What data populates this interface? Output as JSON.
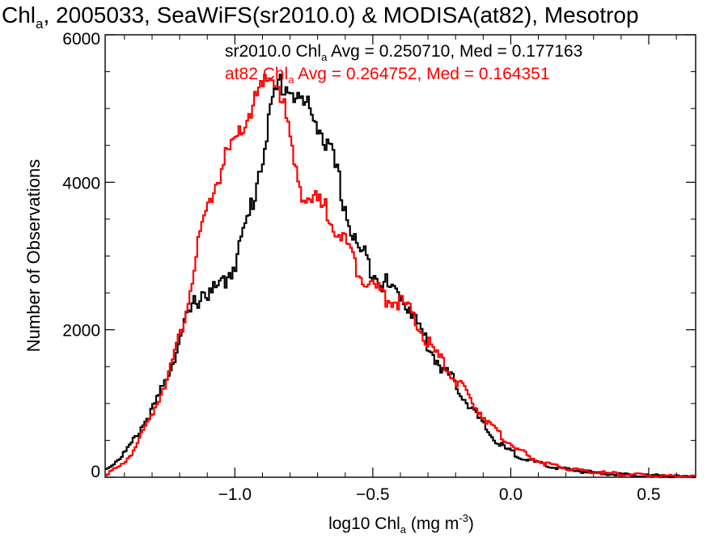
{
  "chart_data": {
    "type": "line",
    "title_parts": [
      "Chl",
      "a",
      ", 2005033, SeaWiFS(sr2010.0) & MODISA(at82), Mesotrop"
    ],
    "ylabel": "Number of Observations",
    "xlabel_parts": [
      "log10 Chl",
      "a",
      " (mg m",
      "-3",
      ")"
    ],
    "xlim": [
      -1.47,
      0.67
    ],
    "ylim": [
      0,
      6000
    ],
    "x_ticks": [
      {
        "value": -1.0,
        "label": "−1.0"
      },
      {
        "value": -0.5,
        "label": "−0.5"
      },
      {
        "value": 0.0,
        "label": "0.0"
      },
      {
        "value": 0.5,
        "label": "0.5"
      }
    ],
    "y_ticks": [
      {
        "value": 0,
        "label": "0"
      },
      {
        "value": 2000,
        "label": "2000"
      },
      {
        "value": 4000,
        "label": "4000"
      },
      {
        "value": 6000,
        "label": "6000"
      }
    ],
    "series": [
      {
        "color": "#000000",
        "annotation_parts": [
          "sr2010.0 Chl",
          "a",
          " Avg = 0.250710, Med = 0.177163"
        ],
        "points": [
          [
            -1.47,
            120
          ],
          [
            -1.42,
            280
          ],
          [
            -1.38,
            460
          ],
          [
            -1.34,
            720
          ],
          [
            -1.3,
            960
          ],
          [
            -1.26,
            1300
          ],
          [
            -1.22,
            1720
          ],
          [
            -1.18,
            2180
          ],
          [
            -1.15,
            2420
          ],
          [
            -1.12,
            2600
          ],
          [
            -1.09,
            2560
          ],
          [
            -1.06,
            2640
          ],
          [
            -1.03,
            2800
          ],
          [
            -1.0,
            3050
          ],
          [
            -0.97,
            3400
          ],
          [
            -0.94,
            3800
          ],
          [
            -0.91,
            4350
          ],
          [
            -0.88,
            4900
          ],
          [
            -0.86,
            5250
          ],
          [
            -0.84,
            5450
          ],
          [
            -0.82,
            5400
          ],
          [
            -0.8,
            5350
          ],
          [
            -0.78,
            5250
          ],
          [
            -0.76,
            5150
          ],
          [
            -0.74,
            5100
          ],
          [
            -0.72,
            5000
          ],
          [
            -0.7,
            4900
          ],
          [
            -0.68,
            4650
          ],
          [
            -0.66,
            4500
          ],
          [
            -0.64,
            4300
          ],
          [
            -0.62,
            4000
          ],
          [
            -0.6,
            3700
          ],
          [
            -0.58,
            3400
          ],
          [
            -0.56,
            3200
          ],
          [
            -0.53,
            3050
          ],
          [
            -0.5,
            2900
          ],
          [
            -0.47,
            2750
          ],
          [
            -0.44,
            2620
          ],
          [
            -0.4,
            2550
          ],
          [
            -0.37,
            2380
          ],
          [
            -0.33,
            2050
          ],
          [
            -0.29,
            1750
          ],
          [
            -0.25,
            1520
          ],
          [
            -0.21,
            1350
          ],
          [
            -0.17,
            1100
          ],
          [
            -0.13,
            880
          ],
          [
            -0.1,
            720
          ],
          [
            -0.06,
            520
          ],
          [
            -0.02,
            400
          ],
          [
            0.02,
            320
          ],
          [
            0.06,
            250
          ],
          [
            0.1,
            200
          ],
          [
            0.14,
            160
          ],
          [
            0.2,
            120
          ],
          [
            0.26,
            90
          ],
          [
            0.32,
            70
          ],
          [
            0.4,
            50
          ],
          [
            0.48,
            35
          ],
          [
            0.56,
            25
          ],
          [
            0.67,
            15
          ]
        ]
      },
      {
        "color": "#ff0000",
        "annotation_parts": [
          "at82 Chl",
          "a",
          " Avg = 0.264752, Med = 0.164351"
        ],
        "points": [
          [
            -1.47,
            60
          ],
          [
            -1.42,
            150
          ],
          [
            -1.38,
            330
          ],
          [
            -1.34,
            600
          ],
          [
            -1.3,
            920
          ],
          [
            -1.26,
            1300
          ],
          [
            -1.22,
            1720
          ],
          [
            -1.19,
            2150
          ],
          [
            -1.17,
            2600
          ],
          [
            -1.15,
            2900
          ],
          [
            -1.13,
            3300
          ],
          [
            -1.11,
            3600
          ],
          [
            -1.09,
            3900
          ],
          [
            -1.07,
            4100
          ],
          [
            -1.05,
            4300
          ],
          [
            -1.03,
            4450
          ],
          [
            -1.01,
            4550
          ],
          [
            -0.99,
            4700
          ],
          [
            -0.97,
            4850
          ],
          [
            -0.95,
            5050
          ],
          [
            -0.93,
            5200
          ],
          [
            -0.91,
            5300
          ],
          [
            -0.89,
            5420
          ],
          [
            -0.87,
            5520
          ],
          [
            -0.85,
            5450
          ],
          [
            -0.83,
            5200
          ],
          [
            -0.81,
            4800
          ],
          [
            -0.79,
            4350
          ],
          [
            -0.77,
            4050
          ],
          [
            -0.75,
            3950
          ],
          [
            -0.73,
            3850
          ],
          [
            -0.71,
            3800
          ],
          [
            -0.69,
            3750
          ],
          [
            -0.67,
            3700
          ],
          [
            -0.65,
            3600
          ],
          [
            -0.63,
            3450
          ],
          [
            -0.61,
            3300
          ],
          [
            -0.59,
            3150
          ],
          [
            -0.57,
            3000
          ],
          [
            -0.55,
            2900
          ],
          [
            -0.53,
            2800
          ],
          [
            -0.5,
            2650
          ],
          [
            -0.47,
            2550
          ],
          [
            -0.44,
            2500
          ],
          [
            -0.4,
            2450
          ],
          [
            -0.37,
            2300
          ],
          [
            -0.33,
            2050
          ],
          [
            -0.29,
            1800
          ],
          [
            -0.25,
            1600
          ],
          [
            -0.21,
            1400
          ],
          [
            -0.17,
            1200
          ],
          [
            -0.13,
            1000
          ],
          [
            -0.09,
            800
          ],
          [
            -0.05,
            620
          ],
          [
            -0.01,
            500
          ],
          [
            0.03,
            380
          ],
          [
            0.07,
            280
          ],
          [
            0.11,
            220
          ],
          [
            0.16,
            160
          ],
          [
            0.22,
            120
          ],
          [
            0.28,
            90
          ],
          [
            0.34,
            70
          ],
          [
            0.42,
            50
          ],
          [
            0.5,
            35
          ],
          [
            0.58,
            25
          ],
          [
            0.67,
            15
          ]
        ]
      }
    ],
    "grid": false,
    "legend": "top-center"
  }
}
